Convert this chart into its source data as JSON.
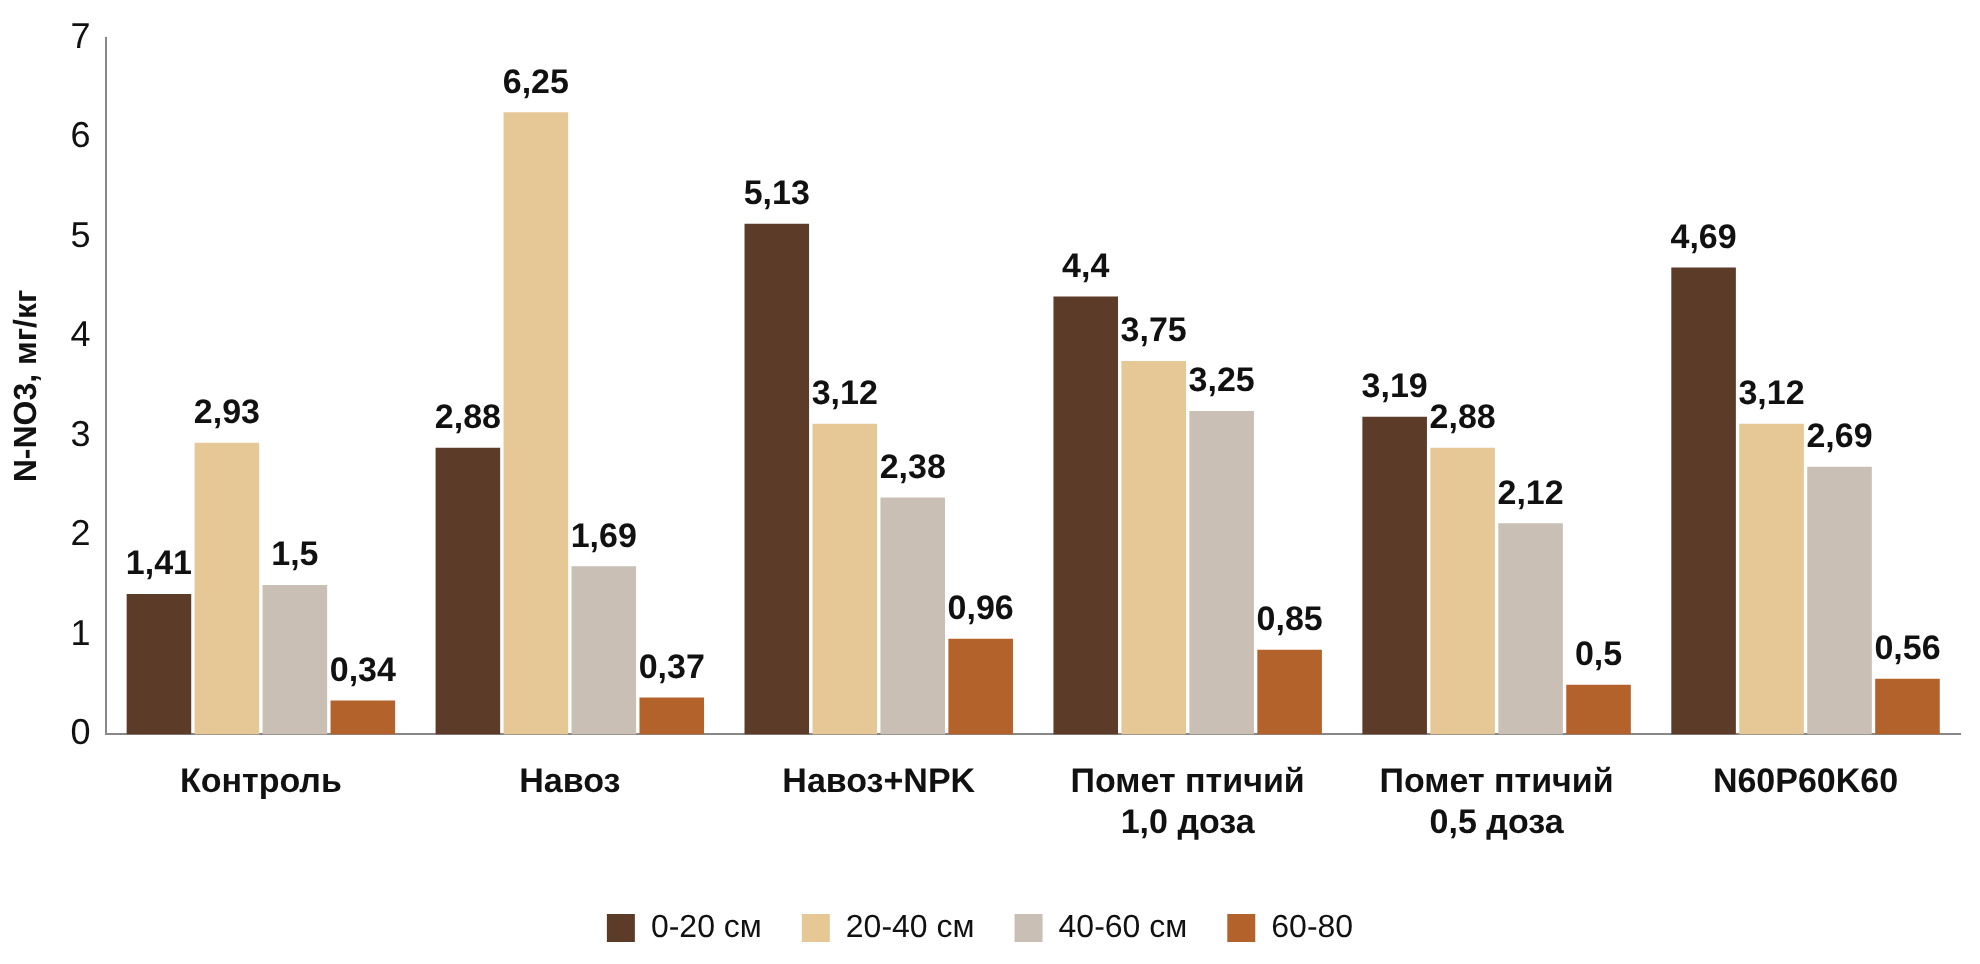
{
  "chart_data": {
    "type": "bar",
    "ylabel": "N-NO3, мг/кг",
    "categories": [
      "Контроль",
      "Навоз",
      "Навоз+NPK",
      "Помет птичий 1,0 доза",
      "Помет птичий 0,5 доза",
      "N60P60K60"
    ],
    "series": [
      {
        "name": "0-20 см",
        "color": "#5c3b28",
        "values": [
          1.41,
          2.88,
          5.13,
          4.4,
          3.19,
          4.69
        ],
        "value_labels": [
          "1,41",
          "2,88",
          "5,13",
          "4,4",
          "3,19",
          "4,69"
        ]
      },
      {
        "name": "20-40 см",
        "color": "#e6c796",
        "values": [
          2.93,
          6.25,
          3.12,
          3.75,
          2.88,
          3.12
        ],
        "value_labels": [
          "2,93",
          "6,25",
          "3,12",
          "3,75",
          "2,88",
          "3,12"
        ]
      },
      {
        "name": "40-60 см",
        "color": "#c9bfb5",
        "values": [
          1.5,
          1.69,
          2.38,
          3.25,
          2.12,
          2.69
        ],
        "value_labels": [
          "1,5",
          "1,69",
          "2,38",
          "3,25",
          "2,12",
          "2,69"
        ]
      },
      {
        "name": "60-80",
        "color": "#b4622c",
        "values": [
          0.34,
          0.37,
          0.96,
          0.85,
          0.5,
          0.56
        ],
        "value_labels": [
          "0,34",
          "0,37",
          "0,96",
          "0,85",
          "0,5",
          "0,56"
        ]
      }
    ],
    "ylim": [
      0,
      7
    ],
    "yticks": [
      0,
      1,
      2,
      3,
      4,
      5,
      6,
      7
    ],
    "grid": false,
    "legend": "bottom"
  }
}
